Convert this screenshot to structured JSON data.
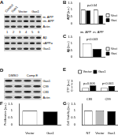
{
  "chart_data": [
    {
      "panel": "B",
      "type": "bar",
      "categories": [
        "im. APP",
        "m. APP"
      ],
      "y_label": "APP (a.u.)",
      "series": [
        {
          "name": "Vector",
          "color": "#ffffff",
          "values": [
            1,
            1
          ]
        },
        {
          "name": "Gas1",
          "color": "#000000",
          "values": [
            0.95,
            0.6
          ]
        }
      ],
      "ylim": [
        0,
        1.5
      ],
      "yticks": [
        0,
        0.5,
        1,
        1.5
      ],
      "grid": false,
      "legend": "right",
      "annotations": [
        "p=0.04"
      ]
    },
    {
      "panel": "C",
      "type": "bar",
      "categories": [
        null
      ],
      "y_label": "Aβ (a.u.)",
      "series": [
        {
          "name": "Vector",
          "color": "#ffffff",
          "values": [
            1
          ]
        },
        {
          "name": "Gas1",
          "color": "#000000",
          "values": [
            0.6
          ]
        }
      ],
      "ylim": [
        0,
        1.5
      ],
      "yticks": [
        0,
        0.5,
        1,
        1.5
      ],
      "grid": false,
      "legend": "right",
      "annotations": [
        "p<0.003"
      ]
    },
    {
      "panel": "E",
      "type": "bar",
      "categories": [
        "C83",
        "C99"
      ],
      "y_label": "CTF (a.u.)",
      "series": [
        {
          "name": "Vector",
          "color": "#ffffff",
          "values": [
            1,
            1
          ]
        },
        {
          "name": "Gas1",
          "color": "#000000",
          "values": [
            1.7,
            1.5
          ]
        }
      ],
      "ylim": [
        0,
        3
      ],
      "yticks": [
        0,
        1,
        2,
        3
      ],
      "grid": false,
      "legend": "top",
      "annotations": [
        "p=0.006",
        "p<0.001"
      ]
    },
    {
      "panel": "F",
      "type": "bar",
      "categories": [
        "Vector",
        "Gas1"
      ],
      "y_label": "Proliferation (a.u.)",
      "values": [
        1,
        0.95
      ],
      "colors": [
        "#ffffff",
        "#000000"
      ],
      "ylim": [
        0,
        1.5
      ],
      "yticks": [
        0,
        0.5,
        1,
        1.5
      ],
      "grid": false
    },
    {
      "panel": "G",
      "type": "bar",
      "categories": [
        "NT",
        "Vector",
        "Gas1"
      ],
      "y_label": "Cell Viability (a.u.)",
      "values": [
        1,
        1.02,
        0.98
      ],
      "colors": [
        "#ffffff",
        "#bbbbbb",
        "#000000"
      ],
      "ylim": [
        0,
        1.5
      ],
      "yticks": [
        0,
        0.5,
        1,
        1.5
      ],
      "grid": false
    }
  ],
  "blots": [
    {
      "panel": "A",
      "headers": [
        {
          "text": "Control",
          "lanes": [
            0,
            0
          ]
        },
        {
          "text": "Gas1",
          "lanes": [
            1,
            1
          ]
        },
        {
          "text": "Vector",
          "lanes": [
            2,
            3
          ]
        },
        {
          "text": "Gas1",
          "lanes": [
            4,
            5
          ]
        }
      ],
      "rows": [
        {
          "labels": [
            "m. APP",
            "im. APP"
          ]
        },
        {
          "labels": [
            "Actin"
          ]
        },
        {
          "lane_numbers": [
            1,
            2,
            3,
            4,
            5,
            6
          ]
        },
        {
          "labels": [
            "Aβ"
          ]
        },
        {
          "labels": [
            "sAPPα"
          ]
        },
        {
          "labels": [
            "Gas1"
          ]
        }
      ]
    },
    {
      "panel": "D",
      "headers": [
        {
          "text": "DMSO",
          "lanes": [
            0,
            1
          ]
        },
        {
          "text": "Comp E",
          "lanes": [
            2,
            3
          ]
        }
      ],
      "rows": [
        {
          "labels": [
            "Gas1"
          ]
        },
        {
          "labels": [
            "C99"
          ]
        },
        {
          "labels": [
            "C83"
          ]
        },
        {
          "labels": [
            "Actin"
          ]
        }
      ]
    }
  ]
}
